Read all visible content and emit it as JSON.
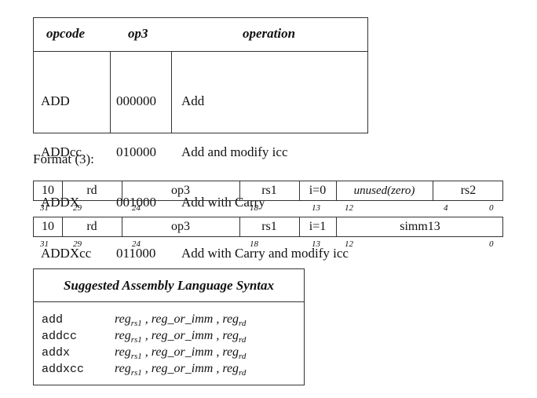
{
  "optable": {
    "headers": {
      "opcode": "opcode",
      "op3": "op3",
      "operation": "operation"
    },
    "rows": [
      {
        "opcode": "ADD",
        "op3": "000000",
        "operation": "Add"
      },
      {
        "opcode": "ADDcc",
        "op3": "010000",
        "operation": "Add and modify icc"
      },
      {
        "opcode": "ADDX",
        "op3": "001000",
        "operation": "Add with Carry"
      },
      {
        "opcode": "ADDXcc",
        "op3": "011000",
        "operation": "Add with Carry and modify icc"
      }
    ]
  },
  "format": {
    "title": "Format (3):",
    "row1": {
      "fields": [
        "10",
        "rd",
        "op3",
        "rs1",
        "i=0",
        "unused(zero)",
        "rs2"
      ],
      "bits": [
        "31",
        "29",
        "24",
        "18",
        "13",
        "12",
        "4",
        "0"
      ]
    },
    "row2": {
      "fields": [
        "10",
        "rd",
        "op3",
        "rs1",
        "i=1",
        "simm13"
      ],
      "bits": [
        "31",
        "29",
        "24",
        "18",
        "13",
        "12",
        "0"
      ]
    }
  },
  "syntax": {
    "title": "Suggested Assembly Language Syntax",
    "rows": [
      {
        "mnemonic": "add"
      },
      {
        "mnemonic": "addcc"
      },
      {
        "mnemonic": "addx"
      },
      {
        "mnemonic": "addxcc"
      }
    ],
    "operand": {
      "reg": "reg",
      "rs1_sub": "rs1",
      "sep": " , ",
      "reg_or_imm": "reg_or_imm",
      "rd_sub": "rd"
    }
  }
}
